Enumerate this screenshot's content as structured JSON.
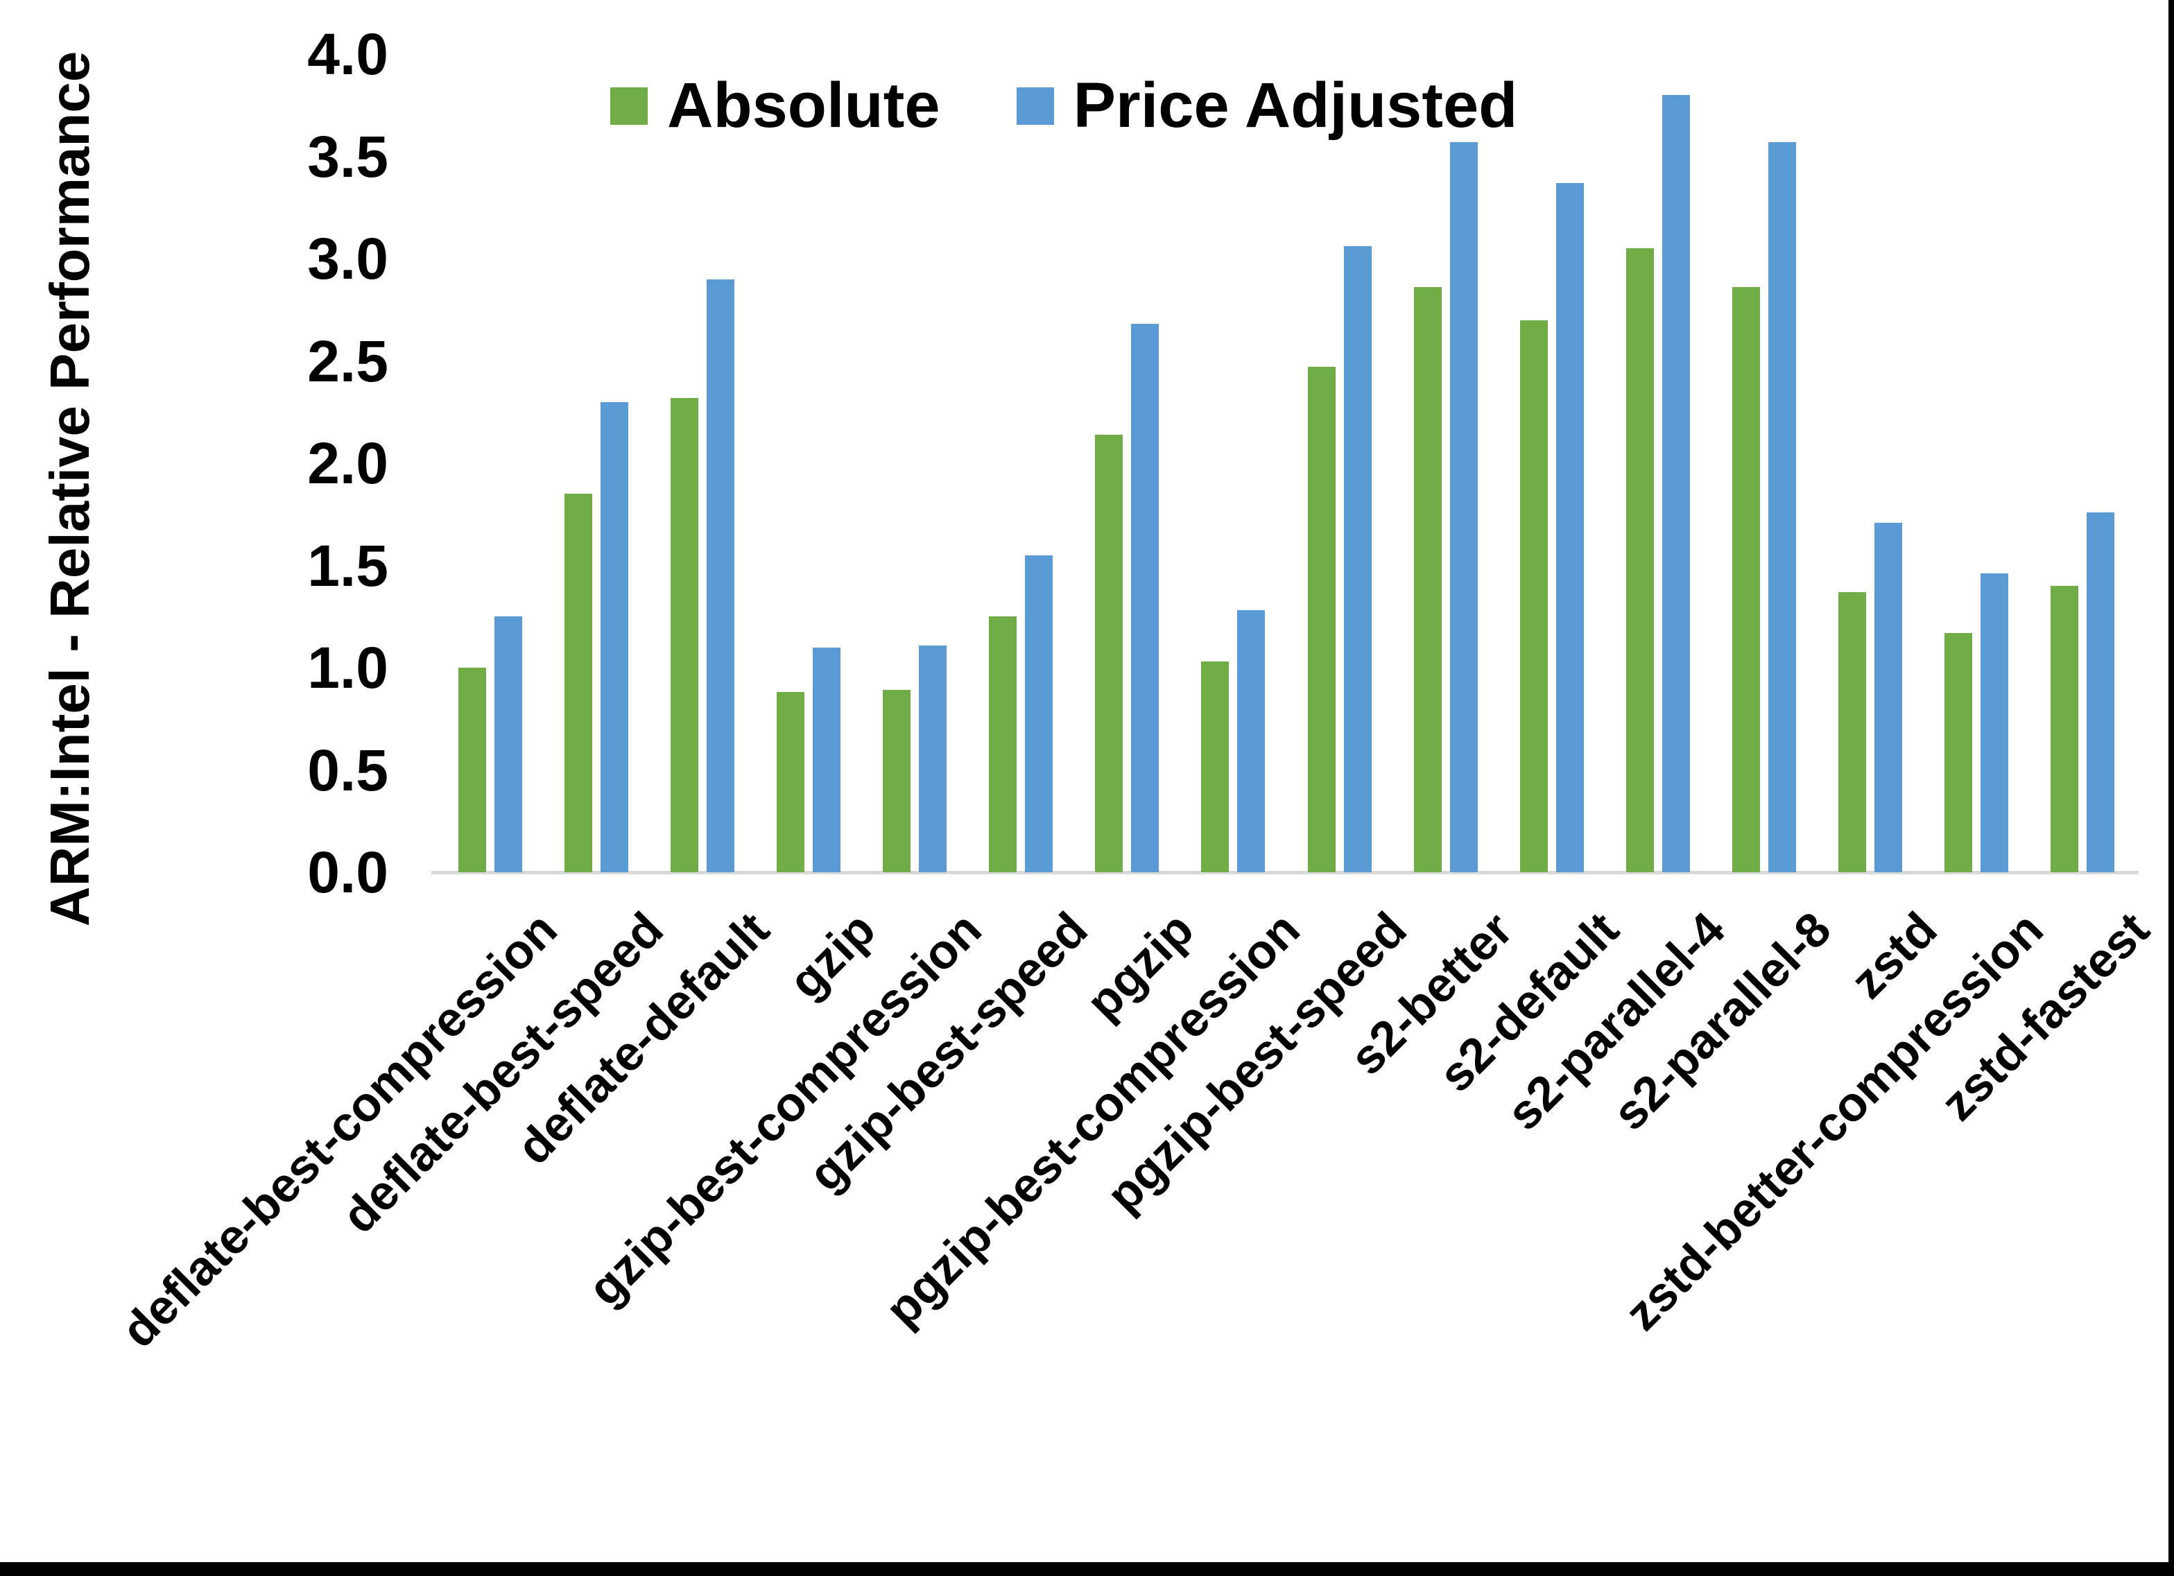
{
  "figure": {
    "background_color": "#ffffff",
    "axis_line_color": "#d9d9d9",
    "frame_color": "#000000",
    "text_color": "#000000"
  },
  "chart_data": {
    "type": "bar",
    "title": "",
    "xlabel": "",
    "ylabel": "ARM:Intel - Relative Performance",
    "ylim": [
      0.0,
      4.0
    ],
    "ytick_step": 0.5,
    "ytick_labels": [
      "0.0",
      "0.5",
      "1.0",
      "1.5",
      "2.0",
      "2.5",
      "3.0",
      "3.5",
      "4.0"
    ],
    "grid": false,
    "legend_position": "top-center",
    "categories": [
      "deflate-best-compression",
      "deflate-best-speed",
      "deflate-default",
      "gzip",
      "gzip-best-compression",
      "gzip-best-speed",
      "pgzip",
      "pgzip-best-compression",
      "pgzip-best-speed",
      "s2-better",
      "s2-default",
      "s2-parallel-4",
      "s2-parallel-8",
      "zstd",
      "zstd-better-compression",
      "zstd-fastest"
    ],
    "series": [
      {
        "name": "Absolute",
        "color": "#70AD47",
        "values": [
          1.0,
          1.85,
          2.32,
          0.88,
          0.89,
          1.25,
          2.14,
          1.03,
          2.47,
          2.86,
          2.7,
          3.05,
          2.86,
          1.37,
          1.17,
          1.4
        ]
      },
      {
        "name": "Price Adjusted",
        "color": "#5B9BD5",
        "values": [
          1.25,
          2.3,
          2.9,
          1.1,
          1.11,
          1.55,
          2.68,
          1.28,
          3.06,
          3.57,
          3.37,
          3.8,
          3.57,
          1.71,
          1.46,
          1.76
        ]
      }
    ]
  }
}
